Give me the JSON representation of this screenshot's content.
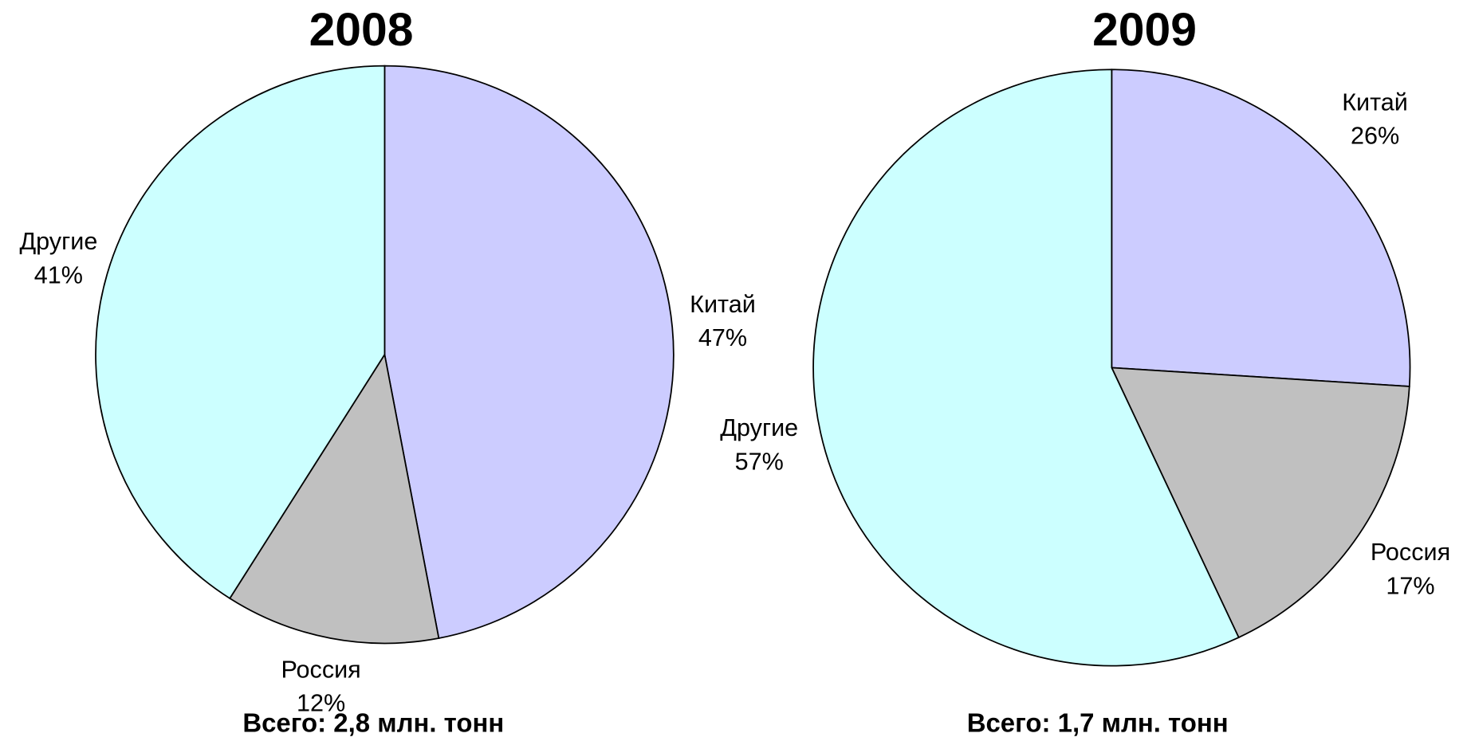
{
  "chart_data": [
    {
      "type": "pie",
      "title": "2008",
      "categories": [
        "Китай",
        "Россия",
        "Другие"
      ],
      "values": [
        47,
        12,
        41
      ],
      "value_labels": [
        "47%",
        "12%",
        "41%"
      ],
      "colors": [
        "#ccccff",
        "#c0c0c0",
        "#ccffff"
      ],
      "subtitle": "Всего: 2,8 млн. тонн"
    },
    {
      "type": "pie",
      "title": "2009",
      "categories": [
        "Китай",
        "Россия",
        "Другие"
      ],
      "values": [
        26,
        17,
        57
      ],
      "value_labels": [
        "26%",
        "17%",
        "57%"
      ],
      "colors": [
        "#ccccff",
        "#c0c0c0",
        "#ccffff"
      ],
      "subtitle": "Всего: 1,7 млн. тонн"
    }
  ]
}
